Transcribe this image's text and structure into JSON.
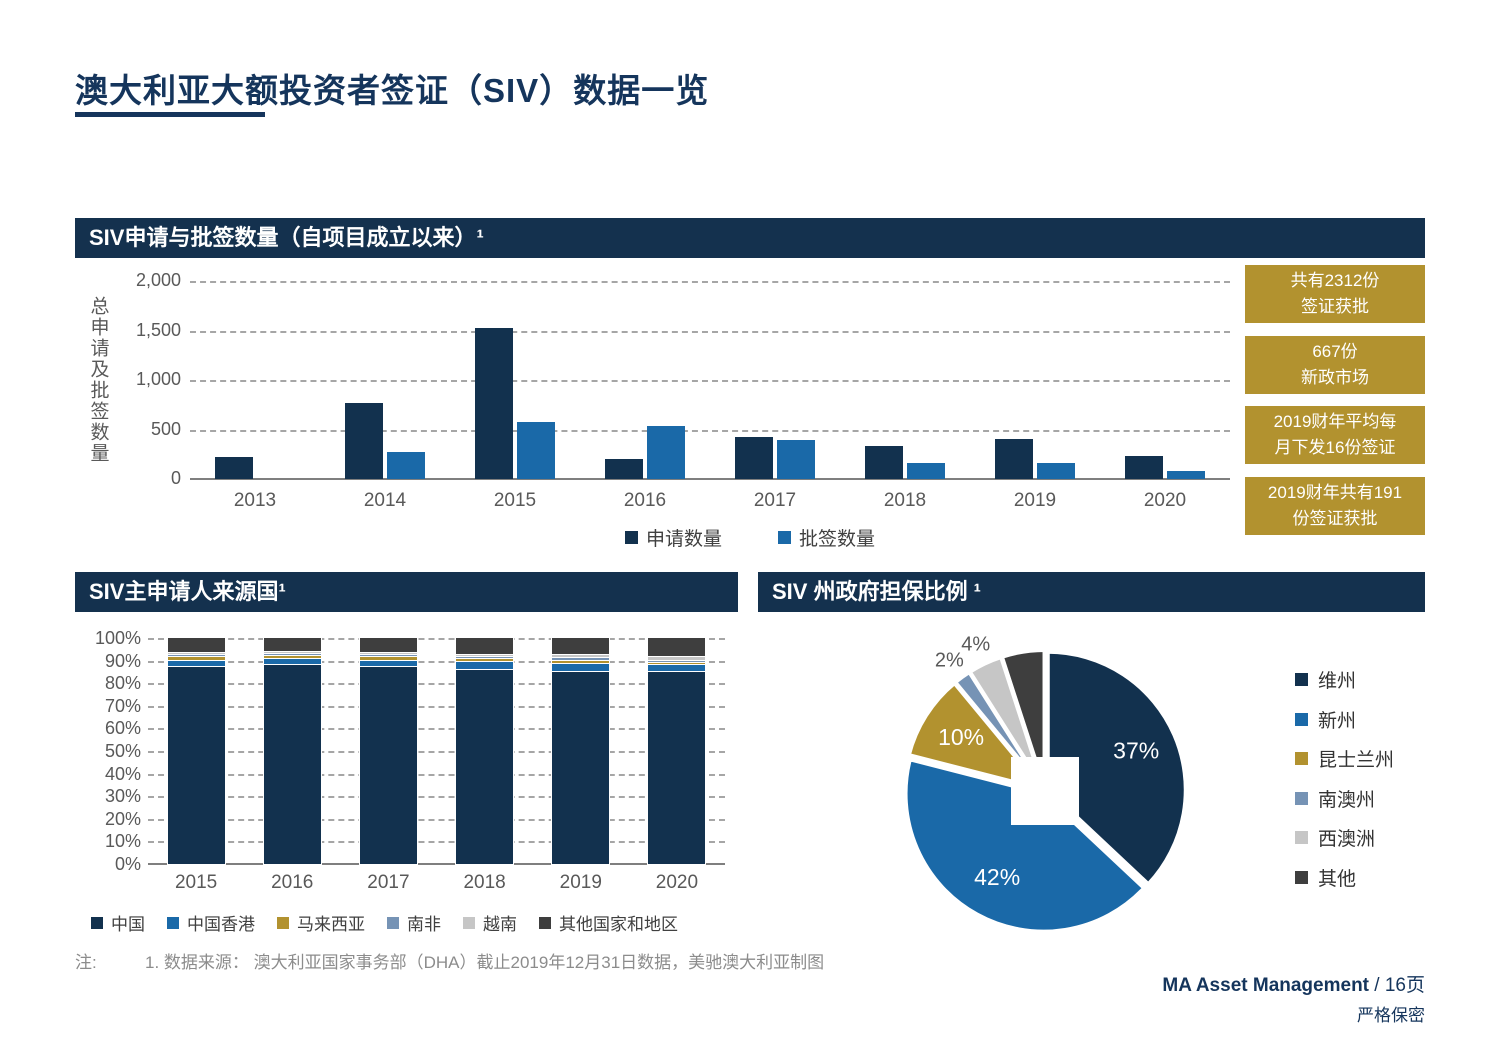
{
  "slide": {
    "title": "澳大利亚大额投资者签证（SIV）数据一览",
    "note_label": "注:",
    "note_text": "1. 数据来源： 澳大利亚国家事务部（DHA）截止2019年12月31日数据，美驰澳大利亚制图",
    "brand": "MA Asset Management",
    "page_suffix": " / 16页",
    "confidential": "严格保密"
  },
  "colors": {
    "navy_header": "#14314E",
    "dark_bar": "#12314E",
    "blue": "#1A69A8",
    "gold": "#B2922F",
    "steel_blue": "#7693B5",
    "light_gray": "#C6C6C6",
    "charcoal": "#3E3E3E",
    "axis_text": "#595959",
    "gridline": "#A6A6A6",
    "note_gray": "#8C8C8C"
  },
  "callouts": [
    {
      "text": "共有2312份\n签证获批"
    },
    {
      "text": "667份\n新政市场"
    },
    {
      "text": "2019财年平均每\n月下发16份签证"
    },
    {
      "text": "2019财年共有191\n份签证获批"
    }
  ],
  "chart_data": [
    {
      "type": "bar",
      "title": "SIV申请与批签数量（自项目成立以来）¹",
      "ylabel": "总申请及批签数量",
      "categories": [
        "2013",
        "2014",
        "2015",
        "2016",
        "2017",
        "2018",
        "2019",
        "2020"
      ],
      "series": [
        {
          "name": "申请数量",
          "color": "#12314E",
          "values": [
            220,
            770,
            1530,
            200,
            420,
            330,
            400,
            230
          ]
        },
        {
          "name": "批签数量",
          "color": "#1A69A8",
          "values": [
            0,
            270,
            580,
            540,
            390,
            165,
            165,
            85
          ]
        }
      ],
      "ylim": [
        0,
        2000
      ],
      "yticks": [
        {
          "v": 0,
          "label": "0"
        },
        {
          "v": 500,
          "label": "500"
        },
        {
          "v": 1000,
          "label": "1,000"
        },
        {
          "v": 1500,
          "label": "1,500"
        },
        {
          "v": 2000,
          "label": "2,000"
        }
      ],
      "grid": "dashed-horizontal",
      "legend_position": "bottom"
    },
    {
      "type": "bar",
      "subtype": "stacked-100-percent",
      "title": "SIV主申请人来源国¹",
      "categories": [
        "2015",
        "2016",
        "2017",
        "2018",
        "2019",
        "2020"
      ],
      "series": [
        {
          "name": "中国",
          "color": "#12314E",
          "values": [
            87,
            88,
            87,
            86,
            85,
            85
          ]
        },
        {
          "name": "中国香港",
          "color": "#1A69A8",
          "values": [
            3,
            2.5,
            3,
            3.5,
            3.5,
            3
          ]
        },
        {
          "name": "马来西亚",
          "color": "#B2922F",
          "values": [
            1.5,
            1.5,
            1.5,
            1,
            1.5,
            1
          ]
        },
        {
          "name": "南非",
          "color": "#7693B5",
          "values": [
            1,
            1,
            1,
            1,
            1,
            1
          ]
        },
        {
          "name": "越南",
          "color": "#C6C6C6",
          "values": [
            1,
            1,
            1,
            1,
            1.5,
            1.5
          ]
        },
        {
          "name": "其他国家和地区",
          "color": "#3E3E3E",
          "values": [
            6.5,
            6,
            6.5,
            7.5,
            7.5,
            8.5
          ]
        }
      ],
      "ylim": [
        0,
        100
      ],
      "ytick_labels": [
        "0%",
        "10%",
        "20%",
        "30%",
        "40%",
        "50%",
        "60%",
        "70%",
        "80%",
        "90%",
        "100%"
      ],
      "grid": "dashed-horizontal",
      "legend_position": "bottom"
    },
    {
      "type": "pie",
      "title": "SIV 州政府担保比例 ¹",
      "slices": [
        {
          "label": "维州",
          "value": 37,
          "display": "37%",
          "color": "#12314E",
          "label_pos": "inside"
        },
        {
          "label": "新州",
          "value": 42,
          "display": "42%",
          "color": "#1A69A8",
          "label_pos": "inside"
        },
        {
          "label": "昆士兰州",
          "value": 10,
          "display": "10%",
          "color": "#B2922F",
          "label_pos": "inside"
        },
        {
          "label": "南澳州",
          "value": 2,
          "display": "2%",
          "color": "#7693B5",
          "label_pos": "outside"
        },
        {
          "label": "西澳洲",
          "value": 4,
          "display": "4%",
          "color": "#C6C6C6",
          "label_pos": "outside"
        },
        {
          "label": "其他",
          "value": 5,
          "display": "",
          "color": "#3E3E3E",
          "label_pos": "none"
        }
      ],
      "start_angle": "12-oclock-clockwise",
      "center_cutout": "white-square",
      "legend_position": "right"
    }
  ]
}
